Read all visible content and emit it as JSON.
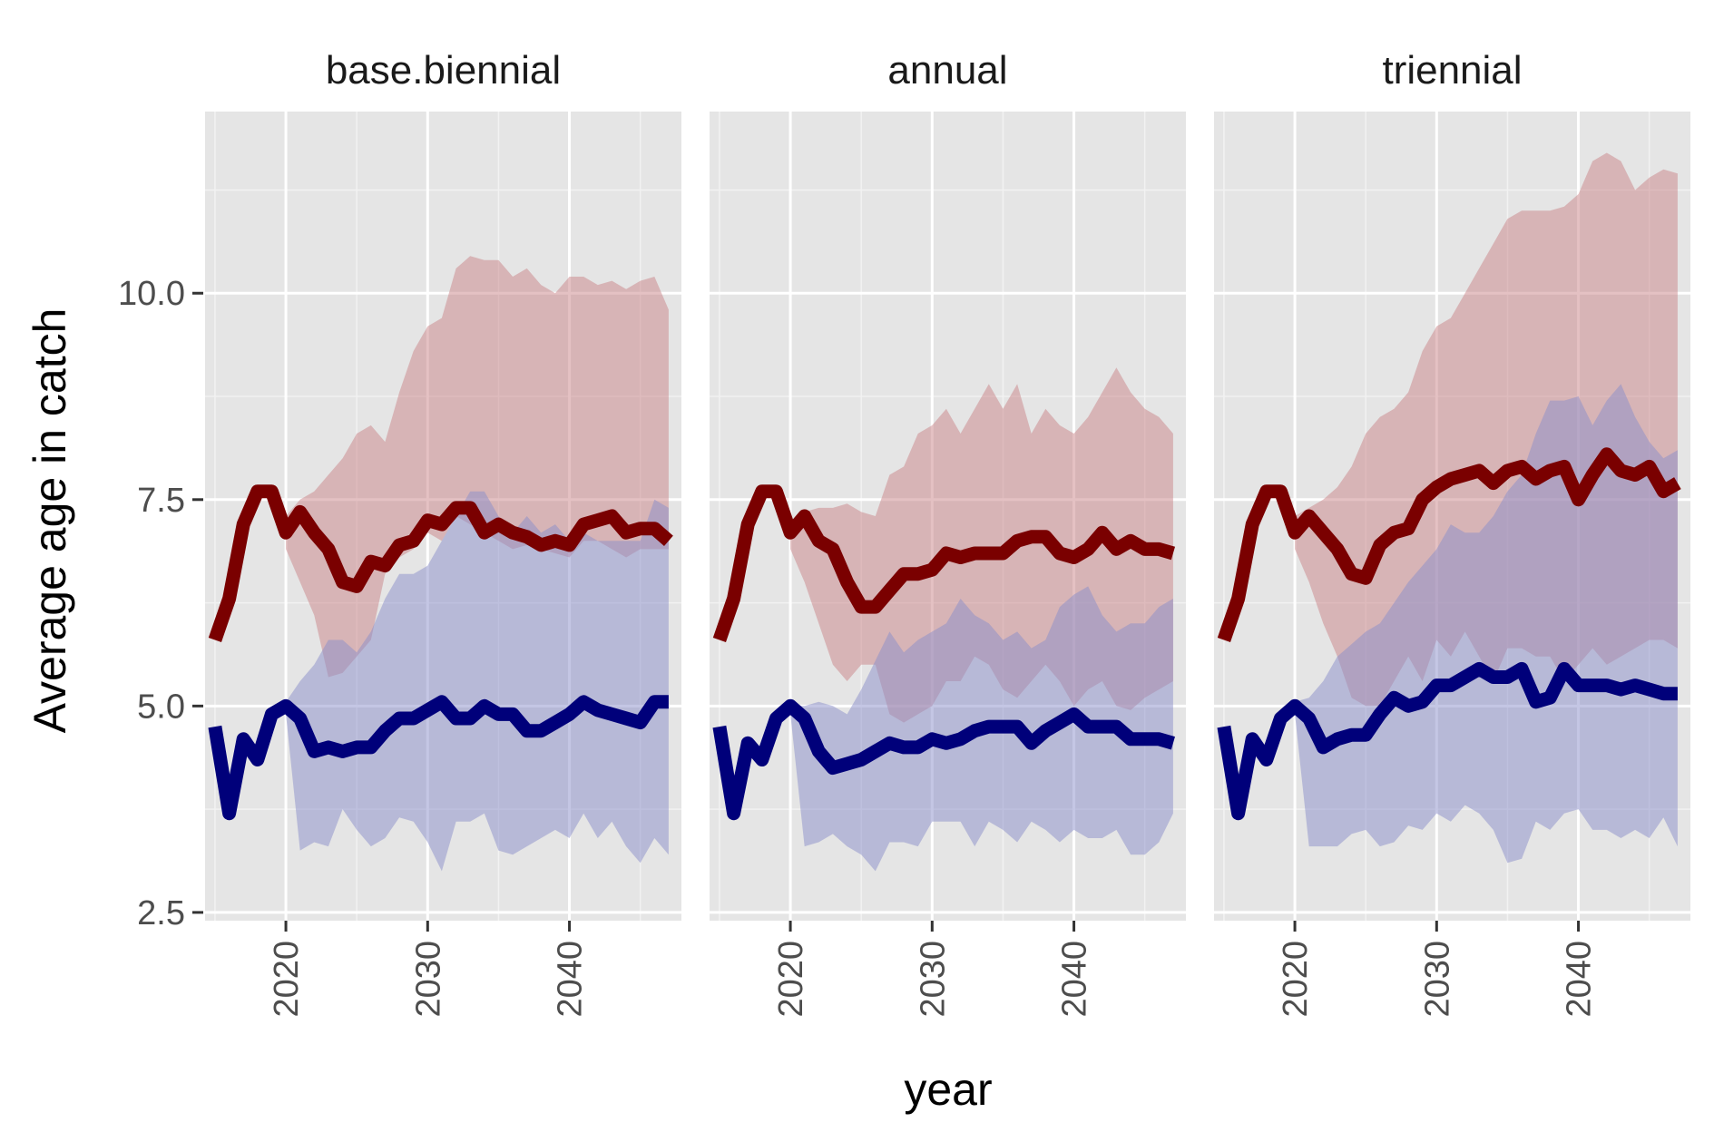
{
  "chart_data": {
    "type": "line",
    "ylabel": "Average age in catch",
    "xlabel": "year",
    "xlim": [
      2014.3,
      2047.9
    ],
    "ylim": [
      2.4,
      12.2
    ],
    "x_ticks": [
      2020,
      2030,
      2040
    ],
    "y_ticks": [
      2.5,
      5.0,
      7.5,
      10.0
    ],
    "y_tick_labels": [
      "2.5",
      "5.0",
      "7.5",
      "10.0"
    ],
    "grid": true,
    "colors": {
      "red_line": "#7a0000",
      "blue_line": "#00007a",
      "red_band": "#c98488",
      "blue_band": "#8a8ec9",
      "panel_bg": "#e5e5e5"
    },
    "panels": [
      {
        "title": "base.biennial",
        "x": [
          2015,
          2016,
          2017,
          2018,
          2019,
          2020,
          2021,
          2022,
          2023,
          2024,
          2025,
          2026,
          2027,
          2028,
          2029,
          2030,
          2031,
          2032,
          2033,
          2034,
          2035,
          2036,
          2037,
          2038,
          2039,
          2040,
          2041,
          2042,
          2043,
          2044,
          2045,
          2046,
          2047
        ],
        "red": [
          5.8,
          6.3,
          7.2,
          7.6,
          7.6,
          7.1,
          7.35,
          7.1,
          6.9,
          6.5,
          6.45,
          6.75,
          6.7,
          6.95,
          7.0,
          7.25,
          7.2,
          7.4,
          7.4,
          7.1,
          7.2,
          7.1,
          7.05,
          6.95,
          7.0,
          6.95,
          7.2,
          7.25,
          7.3,
          7.1,
          7.15,
          7.15,
          7.0
        ],
        "red_lower": [
          null,
          null,
          null,
          null,
          null,
          6.9,
          6.5,
          6.1,
          5.35,
          5.4,
          5.6,
          5.8,
          6.6,
          6.8,
          6.9,
          7.1,
          7.0,
          7.3,
          7.2,
          7.1,
          7.0,
          6.9,
          6.95,
          6.9,
          6.85,
          6.8,
          7.0,
          7.0,
          6.9,
          6.8,
          6.9,
          6.9,
          6.9
        ],
        "red_upper": [
          null,
          null,
          null,
          null,
          null,
          7.3,
          7.5,
          7.6,
          7.8,
          8.0,
          8.3,
          8.4,
          8.2,
          8.8,
          9.3,
          9.6,
          9.7,
          10.3,
          10.45,
          10.4,
          10.4,
          10.2,
          10.3,
          10.1,
          10.0,
          10.2,
          10.2,
          10.1,
          10.15,
          10.05,
          10.15,
          10.2,
          9.8
        ],
        "blue": [
          4.75,
          3.7,
          4.6,
          4.35,
          4.9,
          5.0,
          4.85,
          4.45,
          4.5,
          4.45,
          4.5,
          4.5,
          4.7,
          4.85,
          4.85,
          4.95,
          5.05,
          4.85,
          4.85,
          5.0,
          4.9,
          4.9,
          4.7,
          4.7,
          4.8,
          4.9,
          5.05,
          4.95,
          4.9,
          4.85,
          4.8,
          5.05,
          5.05
        ],
        "blue_lower": [
          null,
          null,
          null,
          null,
          null,
          4.9,
          3.25,
          3.35,
          3.3,
          3.75,
          3.5,
          3.3,
          3.4,
          3.65,
          3.6,
          3.35,
          3.0,
          3.6,
          3.6,
          3.7,
          3.25,
          3.2,
          3.3,
          3.4,
          3.5,
          3.4,
          3.7,
          3.4,
          3.6,
          3.3,
          3.1,
          3.4,
          3.2
        ],
        "blue_upper": [
          null,
          null,
          null,
          null,
          null,
          5.05,
          5.3,
          5.5,
          5.8,
          5.8,
          5.65,
          5.9,
          6.3,
          6.6,
          6.6,
          6.7,
          7.0,
          7.3,
          7.6,
          7.6,
          7.3,
          7.1,
          7.3,
          7.1,
          7.2,
          7.0,
          7.1,
          7.0,
          7.0,
          7.0,
          7.0,
          7.5,
          7.4
        ]
      },
      {
        "title": "annual",
        "x": [
          2015,
          2016,
          2017,
          2018,
          2019,
          2020,
          2021,
          2022,
          2023,
          2024,
          2025,
          2026,
          2027,
          2028,
          2029,
          2030,
          2031,
          2032,
          2033,
          2034,
          2035,
          2036,
          2037,
          2038,
          2039,
          2040,
          2041,
          2042,
          2043,
          2044,
          2045,
          2046,
          2047
        ],
        "red": [
          5.8,
          6.3,
          7.2,
          7.6,
          7.6,
          7.1,
          7.3,
          7.0,
          6.9,
          6.5,
          6.2,
          6.2,
          6.4,
          6.6,
          6.6,
          6.65,
          6.85,
          6.8,
          6.85,
          6.85,
          6.85,
          7.0,
          7.05,
          7.05,
          6.85,
          6.8,
          6.9,
          7.1,
          6.9,
          7.0,
          6.9,
          6.9,
          6.85
        ],
        "red_lower": [
          null,
          null,
          null,
          null,
          null,
          6.9,
          6.5,
          6.0,
          5.5,
          5.3,
          5.5,
          5.5,
          4.9,
          4.8,
          4.9,
          5.0,
          5.3,
          5.3,
          5.6,
          5.5,
          5.2,
          5.1,
          5.3,
          5.5,
          5.3,
          5.0,
          5.2,
          5.3,
          5.0,
          4.95,
          5.1,
          5.2,
          5.3
        ],
        "red_upper": [
          null,
          null,
          null,
          null,
          null,
          7.2,
          7.35,
          7.4,
          7.4,
          7.45,
          7.35,
          7.3,
          7.8,
          7.9,
          8.3,
          8.4,
          8.6,
          8.3,
          8.6,
          8.9,
          8.6,
          8.9,
          8.3,
          8.6,
          8.4,
          8.3,
          8.5,
          8.8,
          9.1,
          8.8,
          8.6,
          8.5,
          8.3
        ],
        "blue": [
          4.75,
          3.7,
          4.55,
          4.35,
          4.85,
          5.0,
          4.85,
          4.45,
          4.25,
          4.3,
          4.35,
          4.45,
          4.55,
          4.5,
          4.5,
          4.6,
          4.55,
          4.6,
          4.7,
          4.75,
          4.75,
          4.75,
          4.55,
          4.7,
          4.8,
          4.9,
          4.75,
          4.75,
          4.75,
          4.6,
          4.6,
          4.6,
          4.55
        ],
        "blue_lower": [
          null,
          null,
          null,
          null,
          null,
          4.9,
          3.3,
          3.35,
          3.45,
          3.3,
          3.2,
          3.0,
          3.35,
          3.35,
          3.3,
          3.6,
          3.6,
          3.6,
          3.3,
          3.6,
          3.5,
          3.35,
          3.6,
          3.5,
          3.35,
          3.5,
          3.4,
          3.4,
          3.5,
          3.2,
          3.2,
          3.35,
          3.7
        ],
        "blue_upper": [
          null,
          null,
          null,
          null,
          null,
          5.0,
          5.0,
          5.05,
          5.0,
          4.9,
          5.2,
          5.55,
          5.9,
          5.65,
          5.8,
          5.9,
          6.0,
          6.3,
          6.1,
          6.0,
          5.8,
          5.9,
          5.7,
          5.8,
          6.2,
          6.35,
          6.45,
          6.1,
          5.9,
          6.0,
          6.0,
          6.2,
          6.3
        ]
      },
      {
        "title": "triennial",
        "x": [
          2015,
          2016,
          2017,
          2018,
          2019,
          2020,
          2021,
          2022,
          2023,
          2024,
          2025,
          2026,
          2027,
          2028,
          2029,
          2030,
          2031,
          2032,
          2033,
          2034,
          2035,
          2036,
          2037,
          2038,
          2039,
          2040,
          2041,
          2042,
          2043,
          2044,
          2045,
          2046,
          2047
        ],
        "red": [
          5.8,
          6.3,
          7.2,
          7.6,
          7.6,
          7.1,
          7.3,
          7.1,
          6.9,
          6.6,
          6.55,
          6.95,
          7.1,
          7.15,
          7.5,
          7.65,
          7.75,
          7.8,
          7.85,
          7.7,
          7.85,
          7.9,
          7.75,
          7.85,
          7.9,
          7.5,
          7.8,
          8.05,
          7.85,
          7.8,
          7.9,
          7.6,
          7.7
        ],
        "red_lower": [
          null,
          null,
          null,
          null,
          null,
          6.9,
          6.5,
          6.0,
          5.6,
          5.1,
          5.0,
          5.0,
          5.3,
          5.6,
          5.3,
          5.8,
          5.6,
          5.9,
          5.6,
          5.3,
          5.7,
          5.7,
          5.6,
          5.6,
          5.3,
          5.5,
          5.7,
          5.5,
          5.6,
          5.7,
          5.8,
          5.8,
          5.7
        ],
        "red_upper": [
          null,
          null,
          null,
          null,
          null,
          7.3,
          7.4,
          7.5,
          7.65,
          7.9,
          8.3,
          8.5,
          8.6,
          8.8,
          9.3,
          9.6,
          9.7,
          10.0,
          10.3,
          10.6,
          10.9,
          11.0,
          11.0,
          11.0,
          11.05,
          11.2,
          11.6,
          11.7,
          11.6,
          11.25,
          11.4,
          11.5,
          11.45
        ],
        "blue": [
          4.75,
          3.7,
          4.6,
          4.35,
          4.85,
          5.0,
          4.85,
          4.5,
          4.6,
          4.65,
          4.65,
          4.9,
          5.1,
          5.0,
          5.05,
          5.25,
          5.25,
          5.35,
          5.45,
          5.35,
          5.35,
          5.45,
          5.05,
          5.1,
          5.45,
          5.25,
          5.25,
          5.25,
          5.2,
          5.25,
          5.2,
          5.15,
          5.15
        ],
        "blue_lower": [
          null,
          null,
          null,
          null,
          null,
          4.9,
          3.3,
          3.3,
          3.3,
          3.45,
          3.5,
          3.3,
          3.35,
          3.55,
          3.5,
          3.7,
          3.6,
          3.8,
          3.7,
          3.5,
          3.1,
          3.15,
          3.6,
          3.5,
          3.7,
          3.75,
          3.5,
          3.5,
          3.4,
          3.5,
          3.4,
          3.65,
          3.3
        ],
        "blue_upper": [
          null,
          null,
          null,
          null,
          null,
          5.05,
          5.1,
          5.3,
          5.6,
          5.75,
          5.9,
          6.0,
          6.25,
          6.5,
          6.7,
          6.9,
          7.2,
          7.1,
          7.1,
          7.3,
          7.6,
          7.8,
          8.3,
          8.7,
          8.7,
          8.75,
          8.4,
          8.7,
          8.9,
          8.5,
          8.2,
          8.0,
          8.1
        ]
      }
    ]
  }
}
